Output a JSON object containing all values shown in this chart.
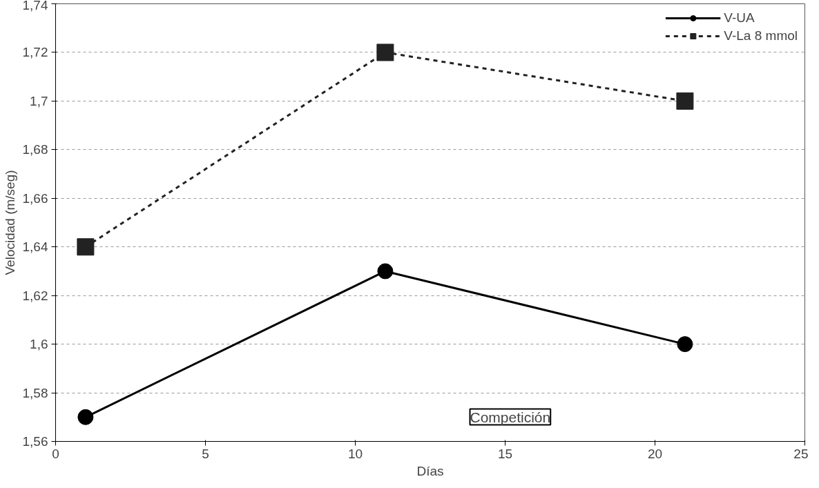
{
  "chart_data": {
    "type": "line",
    "xlabel": "Días",
    "ylabel": "Velocidad (m/seg)",
    "x": [
      1,
      11,
      21
    ],
    "series": [
      {
        "name": "V-UA",
        "color": "#000000",
        "values": [
          1.57,
          1.63,
          1.6
        ],
        "marker": "circle",
        "line_style": "solid"
      },
      {
        "name": "V-La 8 mmol",
        "color": "#222222",
        "values": [
          1.64,
          1.72,
          1.7
        ],
        "marker": "square",
        "line_style": "dashed"
      }
    ],
    "xlim": [
      0,
      25
    ],
    "xticks": [
      0,
      5,
      10,
      15,
      20,
      25
    ],
    "ylim": [
      1.56,
      1.74
    ],
    "yticks": [
      {
        "value": 1.56,
        "label": "1,56"
      },
      {
        "value": 1.58,
        "label": "1,58"
      },
      {
        "value": 1.6,
        "label": "1,6"
      },
      {
        "value": 1.62,
        "label": "1,62"
      },
      {
        "value": 1.64,
        "label": "1,64"
      },
      {
        "value": 1.66,
        "label": "1,66"
      },
      {
        "value": 1.68,
        "label": "1,68"
      },
      {
        "value": 1.7,
        "label": "1,7"
      },
      {
        "value": 1.72,
        "label": "1,72"
      },
      {
        "value": 1.74,
        "label": "1,74"
      }
    ],
    "grid": "y",
    "legend": "top right",
    "annotations": [
      "Competición"
    ]
  }
}
